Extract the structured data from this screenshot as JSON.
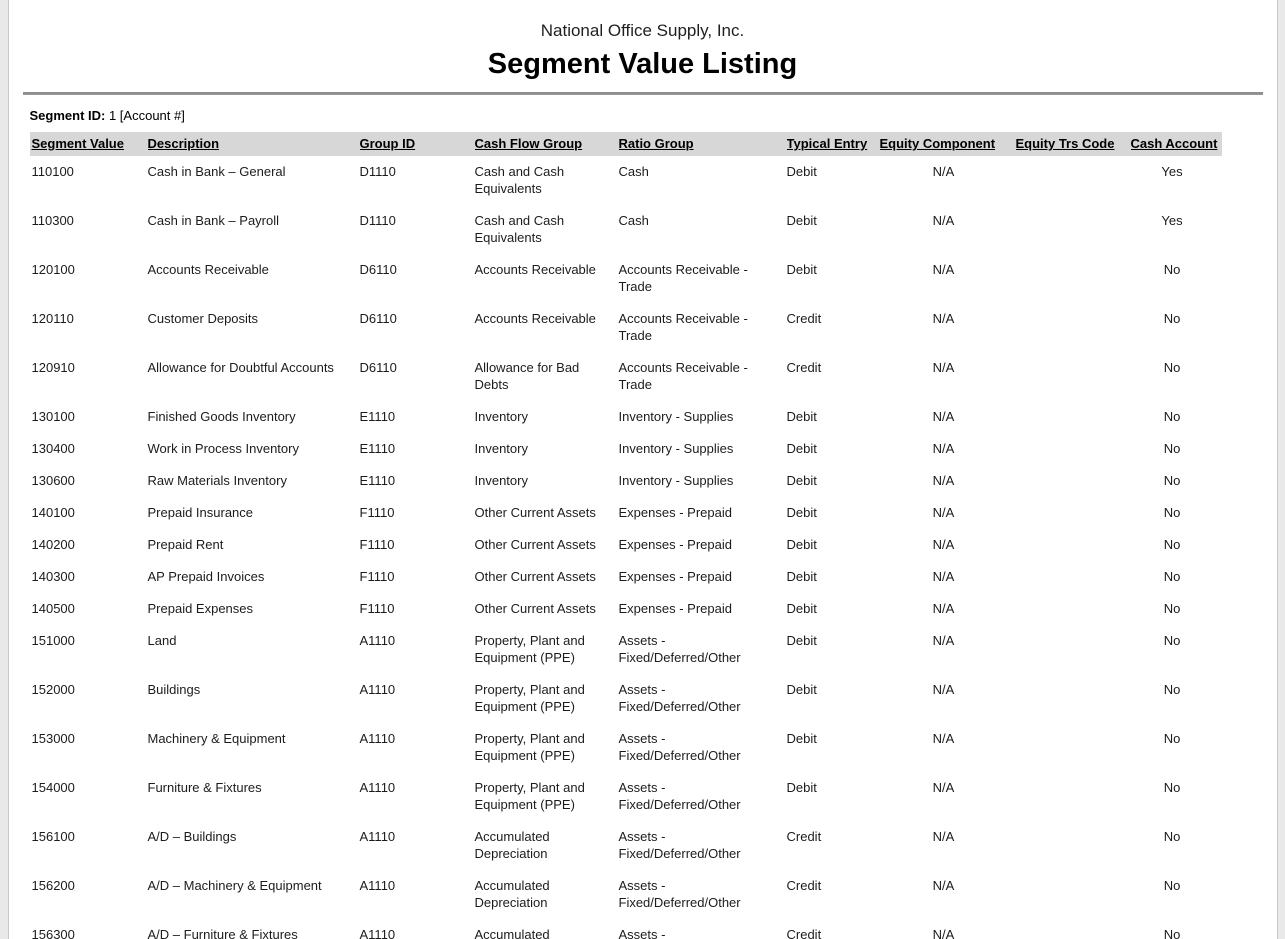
{
  "report": {
    "company": "National Office Supply, Inc.",
    "title": "Segment Value Listing",
    "segment_id_label": "Segment ID:",
    "segment_id_value": "1 [Account #]"
  },
  "table": {
    "columns": [
      "Segment Value",
      "Description",
      "Group ID",
      "Cash Flow Group",
      "Ratio Group",
      "Typical Entry",
      "Equity Component",
      "Equity Trs Code",
      "Cash Account"
    ],
    "rows": [
      [
        "110100",
        "Cash in Bank – General",
        "D1110",
        "Cash and Cash Equivalents",
        "Cash",
        "Debit",
        "N/A",
        "",
        "Yes"
      ],
      [
        "110300",
        "Cash in Bank – Payroll",
        "D1110",
        "Cash and Cash Equivalents",
        "Cash",
        "Debit",
        "N/A",
        "",
        "Yes"
      ],
      [
        "120100",
        "Accounts Receivable",
        "D6110",
        "Accounts Receivable",
        "Accounts Receivable - Trade",
        "Debit",
        "N/A",
        "",
        "No"
      ],
      [
        "120110",
        "Customer Deposits",
        "D6110",
        "Accounts Receivable",
        "Accounts Receivable - Trade",
        "Credit",
        "N/A",
        "",
        "No"
      ],
      [
        "120910",
        "Allowance for Doubtful Accounts",
        "D6110",
        "Allowance for Bad Debts",
        "Accounts Receivable - Trade",
        "Credit",
        "N/A",
        "",
        "No"
      ],
      [
        "130100",
        "Finished Goods Inventory",
        "E1110",
        "Inventory",
        "Inventory - Supplies",
        "Debit",
        "N/A",
        "",
        "No"
      ],
      [
        "130400",
        "Work in Process Inventory",
        "E1110",
        "Inventory",
        "Inventory - Supplies",
        "Debit",
        "N/A",
        "",
        "No"
      ],
      [
        "130600",
        "Raw Materials Inventory",
        "E1110",
        "Inventory",
        "Inventory - Supplies",
        "Debit",
        "N/A",
        "",
        "No"
      ],
      [
        "140100",
        "Prepaid Insurance",
        "F1110",
        "Other Current Assets",
        "Expenses - Prepaid",
        "Debit",
        "N/A",
        "",
        "No"
      ],
      [
        "140200",
        "Prepaid Rent",
        "F1110",
        "Other Current Assets",
        "Expenses - Prepaid",
        "Debit",
        "N/A",
        "",
        "No"
      ],
      [
        "140300",
        "AP Prepaid Invoices",
        "F1110",
        "Other Current Assets",
        "Expenses - Prepaid",
        "Debit",
        "N/A",
        "",
        "No"
      ],
      [
        "140500",
        "Prepaid Expenses",
        "F1110",
        "Other Current Assets",
        "Expenses - Prepaid",
        "Debit",
        "N/A",
        "",
        "No"
      ],
      [
        "151000",
        "Land",
        "A1110",
        "Property, Plant and Equipment (PPE)",
        "Assets - Fixed/Deferred/Other",
        "Debit",
        "N/A",
        "",
        "No"
      ],
      [
        "152000",
        "Buildings",
        "A1110",
        "Property, Plant and Equipment (PPE)",
        "Assets - Fixed/Deferred/Other",
        "Debit",
        "N/A",
        "",
        "No"
      ],
      [
        "153000",
        "Machinery & Equipment",
        "A1110",
        "Property, Plant and Equipment (PPE)",
        "Assets - Fixed/Deferred/Other",
        "Debit",
        "N/A",
        "",
        "No"
      ],
      [
        "154000",
        "Furniture & Fixtures",
        "A1110",
        "Property, Plant and Equipment (PPE)",
        "Assets - Fixed/Deferred/Other",
        "Debit",
        "N/A",
        "",
        "No"
      ],
      [
        "156100",
        "A/D – Buildings",
        "A1110",
        "Accumulated Depreciation",
        "Assets - Fixed/Deferred/Other",
        "Credit",
        "N/A",
        "",
        "No"
      ],
      [
        "156200",
        "A/D – Machinery & Equipment",
        "A1110",
        "Accumulated Depreciation",
        "Assets - Fixed/Deferred/Other",
        "Credit",
        "N/A",
        "",
        "No"
      ],
      [
        "156300",
        "A/D – Furniture & Fixtures",
        "A1110",
        "Accumulated Depreciation",
        "Assets - Fixed/Deferred/Other",
        "Credit",
        "N/A",
        "",
        "No"
      ]
    ]
  }
}
